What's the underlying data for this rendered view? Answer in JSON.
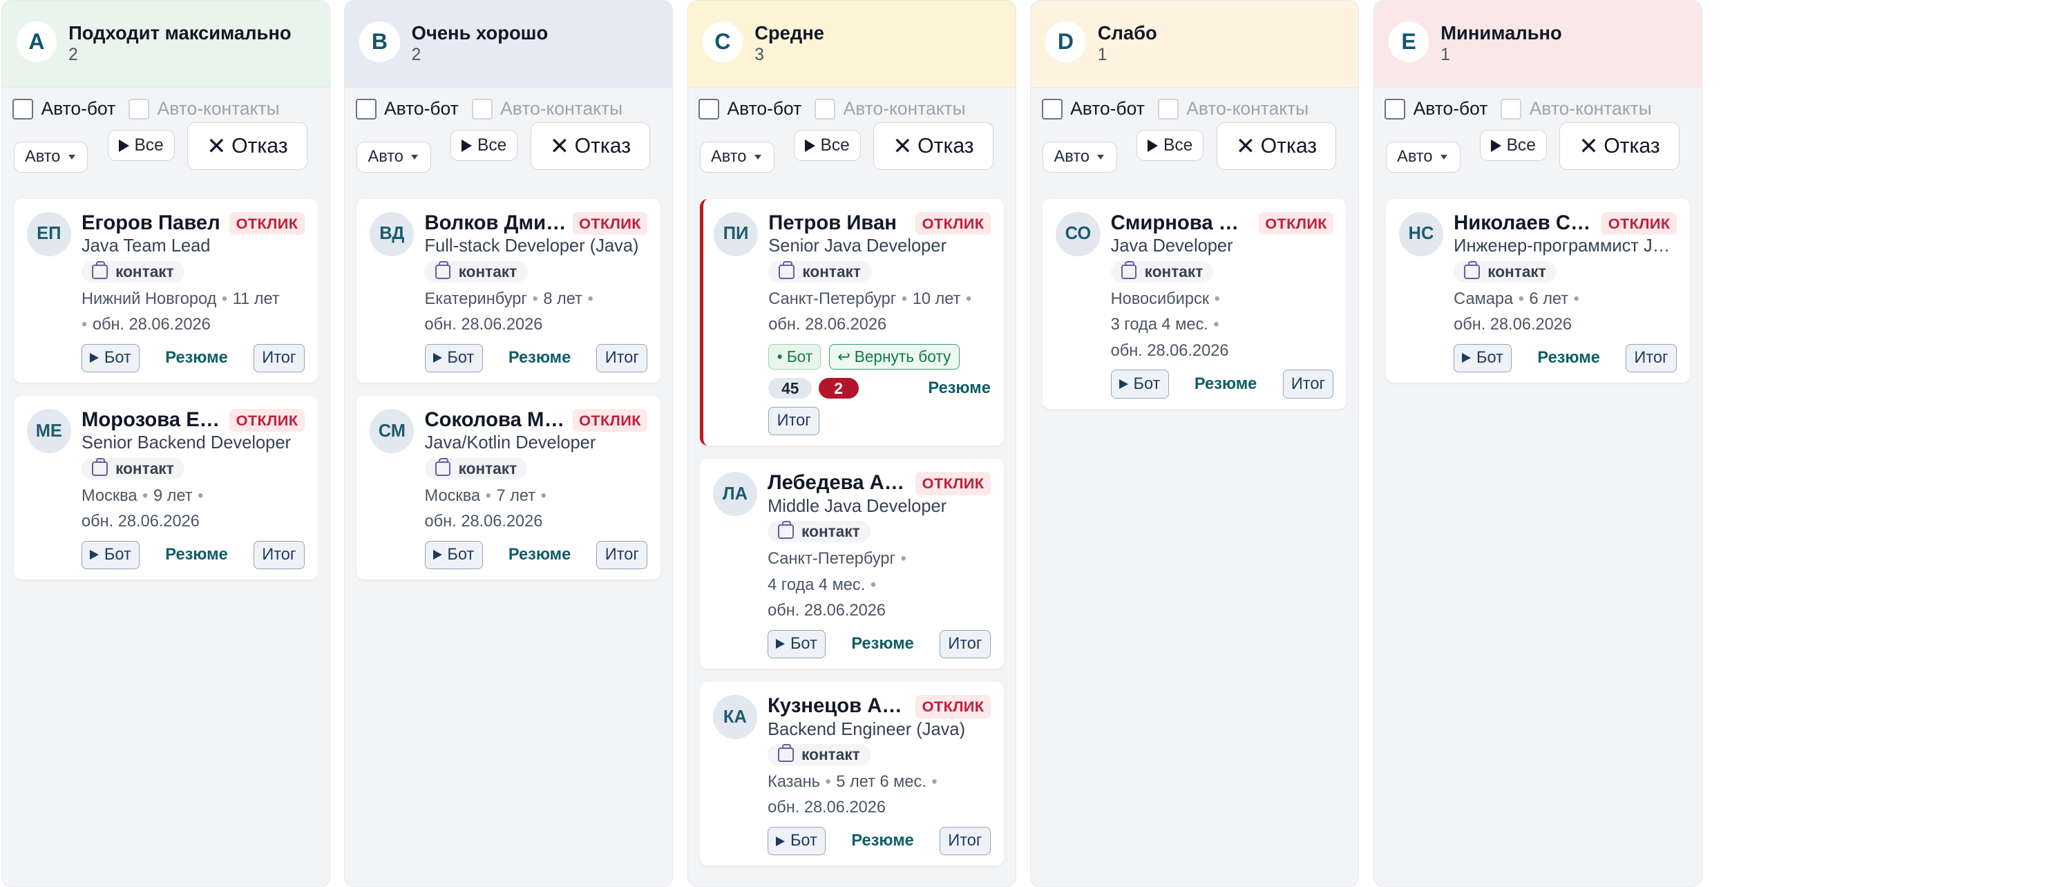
{
  "controls": {
    "auto_bot": "Авто-бот",
    "auto_contacts": "Авто-контакты",
    "select_value": "Авто",
    "all_button": "Все",
    "reject_button": "Отказ"
  },
  "card_labels": {
    "tag": "ОТКЛИК",
    "contact": "контакт",
    "bot_button": "Бот",
    "resume_link": "Резюме",
    "result_button": "Итог",
    "bot_status": "• Бот",
    "return_to_bot": "Вернуть боту"
  },
  "colors": {
    "col_a": "#e8f4ec",
    "col_b": "#e6ebf3",
    "col_c": "#fdf4d6",
    "col_d": "#fdf3df",
    "col_e": "#fae8e9",
    "tag_text": "#c21d3b",
    "link": "#0f5d66",
    "highlight": "#b91c1c"
  },
  "columns": [
    {
      "grade": "A",
      "title": "Подходит максимально",
      "count": "2",
      "cards": [
        {
          "initials": "ЕП",
          "name": "Егоров Павел",
          "role": "Java Team Lead",
          "meta": [
            "Нижний Новгород",
            "11 лет",
            "обн. 28.06.2026"
          ]
        },
        {
          "initials": "МЕ",
          "name": "Морозова Елена",
          "role": "Senior Backend Developer",
          "meta": [
            "Москва",
            "9 лет",
            "обн. 28.06.2026"
          ]
        }
      ]
    },
    {
      "grade": "B",
      "title": "Очень хорошо",
      "count": "2",
      "cards": [
        {
          "initials": "ВД",
          "name": "Волков Дмитрий",
          "role": "Full-stack Developer (Java)",
          "meta": [
            "Екатеринбург",
            "8 лет",
            "обн. 28.06.2026"
          ]
        },
        {
          "initials": "СМ",
          "name": "Соколова Мария",
          "role": "Java/Kotlin Developer",
          "meta": [
            "Москва",
            "7 лет",
            "обн. 28.06.2026"
          ]
        }
      ]
    },
    {
      "grade": "C",
      "title": "Средне",
      "count": "3",
      "cards": [
        {
          "initials": "ПИ",
          "name": "Петров Иван",
          "role": "Senior Java Developer",
          "meta": [
            "Санкт-Петербург",
            "10 лет",
            "обн. 28.06.2026"
          ],
          "score": "45",
          "messages": "2"
        },
        {
          "initials": "ЛА",
          "name": "Лебедева Анна",
          "role": "Middle Java Developer",
          "meta": [
            "Санкт-Петербург",
            "4 года 4 мес.",
            "обн. 28.06.2026"
          ]
        },
        {
          "initials": "КА",
          "name": "Кузнецов Алексей",
          "role": "Backend Engineer (Java)",
          "meta": [
            "Казань",
            "5 лет 6 мес.",
            "обн. 28.06.2026"
          ]
        }
      ]
    },
    {
      "grade": "D",
      "title": "Слабо",
      "count": "1",
      "cards": [
        {
          "initials": "СО",
          "name": "Смирнова Ольга",
          "role": "Java Developer",
          "meta": [
            "Новосибирск",
            "3 года 4 мес.",
            "обн. 28.06.2026"
          ]
        }
      ]
    },
    {
      "grade": "E",
      "title": "Минимально",
      "count": "1",
      "cards": [
        {
          "initials": "НС",
          "name": "Николаев Сергей",
          "role": "Инженер-программист Java",
          "meta": [
            "Самара",
            "6 лет",
            "обн. 28.06.2026"
          ]
        }
      ]
    }
  ]
}
